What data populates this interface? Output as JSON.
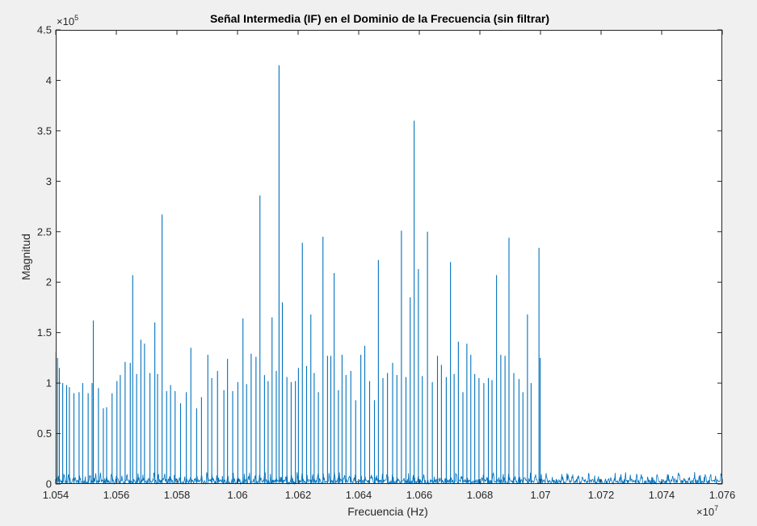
{
  "colors": {
    "figure_bg": "#f0f0f0",
    "axes_bg": "#ffffff",
    "axis": "#262626",
    "line": "#0072bd"
  },
  "chart_data": {
    "type": "line",
    "title": "Señal Intermedia (IF) en el Dominio de la Frecuencia (sin filtrar)",
    "xlabel": "Frecuencia (Hz)",
    "ylabel": "Magnitud",
    "x_exponent_label": "×10",
    "x_exponent_power": "7",
    "y_exponent_label": "×10",
    "y_exponent_power": "5",
    "xlim": [
      10540000,
      10760000
    ],
    "ylim": [
      0,
      450000
    ],
    "x_ticks": [
      10540000,
      10560000,
      10580000,
      10600000,
      10620000,
      10640000,
      10660000,
      10680000,
      10700000,
      10720000,
      10740000,
      10760000
    ],
    "x_tick_labels": [
      "1.054",
      "1.056",
      "1.058",
      "1.06",
      "1.062",
      "1.064",
      "1.066",
      "1.068",
      "1.07",
      "1.072",
      "1.074",
      "1.076"
    ],
    "y_ticks": [
      0,
      50000,
      100000,
      150000,
      200000,
      250000,
      300000,
      350000,
      400000,
      450000
    ],
    "y_tick_labels": [
      "0",
      "0.5",
      "1",
      "1.5",
      "2",
      "2.5",
      "3",
      "3.5",
      "4",
      "4.5"
    ],
    "grid": false,
    "legend": "none",
    "series": [
      {
        "peak_spacing_hz": 1750,
        "noise_floor_max": 12000,
        "peaks": [
          [
            10540100,
            131000
          ],
          [
            10540600,
            125000
          ],
          [
            10541200,
            115000
          ],
          [
            10542300,
            100000
          ],
          [
            10543600,
            98000
          ],
          [
            10544500,
            96000
          ],
          [
            10546000,
            90000
          ],
          [
            10547700,
            91000
          ],
          [
            10548900,
            100000
          ],
          [
            10550700,
            90000
          ],
          [
            10552000,
            100000
          ],
          [
            10552400,
            162000
          ],
          [
            10554100,
            95000
          ],
          [
            10555700,
            75000
          ],
          [
            10556800,
            76000
          ],
          [
            10558600,
            90000
          ],
          [
            10560200,
            102000
          ],
          [
            10561300,
            108000
          ],
          [
            10562900,
            121000
          ],
          [
            10564600,
            120000
          ],
          [
            10565400,
            207000
          ],
          [
            10566700,
            109000
          ],
          [
            10568100,
            143000
          ],
          [
            10569300,
            139000
          ],
          [
            10571100,
            110000
          ],
          [
            10572700,
            160000
          ],
          [
            10573600,
            109000
          ],
          [
            10575100,
            267000
          ],
          [
            10576600,
            92000
          ],
          [
            10577900,
            98000
          ],
          [
            10579400,
            92000
          ],
          [
            10581200,
            80000
          ],
          [
            10583100,
            91000
          ],
          [
            10584600,
            135000
          ],
          [
            10586500,
            75000
          ],
          [
            10588100,
            86000
          ],
          [
            10590200,
            128000
          ],
          [
            10591500,
            105000
          ],
          [
            10593400,
            112000
          ],
          [
            10595500,
            93000
          ],
          [
            10596700,
            124000
          ],
          [
            10598400,
            92000
          ],
          [
            10600100,
            101000
          ],
          [
            10601800,
            164000
          ],
          [
            10603000,
            99000
          ],
          [
            10604500,
            129000
          ],
          [
            10606100,
            126000
          ],
          [
            10607400,
            286000
          ],
          [
            10608900,
            108000
          ],
          [
            10610100,
            102000
          ],
          [
            10611400,
            165000
          ],
          [
            10612800,
            112000
          ],
          [
            10613700,
            415000
          ],
          [
            10614800,
            180000
          ],
          [
            10616300,
            106000
          ],
          [
            10617700,
            101000
          ],
          [
            10619100,
            102000
          ],
          [
            10620100,
            115000
          ],
          [
            10621400,
            239000
          ],
          [
            10622800,
            117000
          ],
          [
            10624200,
            168000
          ],
          [
            10625300,
            110000
          ],
          [
            10626700,
            91000
          ],
          [
            10628200,
            245000
          ],
          [
            10629700,
            127000
          ],
          [
            10630800,
            127000
          ],
          [
            10631900,
            209000
          ],
          [
            10633300,
            93000
          ],
          [
            10634500,
            128000
          ],
          [
            10635800,
            108000
          ],
          [
            10637400,
            112000
          ],
          [
            10639000,
            83000
          ],
          [
            10640700,
            128000
          ],
          [
            10642000,
            137000
          ],
          [
            10643600,
            102000
          ],
          [
            10645200,
            83000
          ],
          [
            10646500,
            222000
          ],
          [
            10648000,
            105000
          ],
          [
            10649500,
            110000
          ],
          [
            10651200,
            120000
          ],
          [
            10652600,
            108000
          ],
          [
            10654100,
            251000
          ],
          [
            10655600,
            106000
          ],
          [
            10657000,
            185000
          ],
          [
            10658300,
            360000
          ],
          [
            10659700,
            213000
          ],
          [
            10661000,
            107000
          ],
          [
            10662700,
            250000
          ],
          [
            10664300,
            101000
          ],
          [
            10666000,
            127000
          ],
          [
            10667300,
            118000
          ],
          [
            10668900,
            106000
          ],
          [
            10670300,
            220000
          ],
          [
            10671500,
            109000
          ],
          [
            10672900,
            141000
          ],
          [
            10674400,
            91000
          ],
          [
            10675700,
            139000
          ],
          [
            10677000,
            128000
          ],
          [
            10678300,
            109000
          ],
          [
            10679700,
            105000
          ],
          [
            10681300,
            100000
          ],
          [
            10682800,
            105000
          ],
          [
            10684000,
            103000
          ],
          [
            10685500,
            207000
          ],
          [
            10686900,
            128000
          ],
          [
            10688300,
            127000
          ],
          [
            10689600,
            244000
          ],
          [
            10691200,
            110000
          ],
          [
            10692900,
            104000
          ],
          [
            10694200,
            91000
          ],
          [
            10695700,
            168000
          ],
          [
            10696900,
            100000
          ],
          [
            10699500,
            234000
          ],
          [
            10699900,
            125000
          ]
        ]
      }
    ]
  }
}
